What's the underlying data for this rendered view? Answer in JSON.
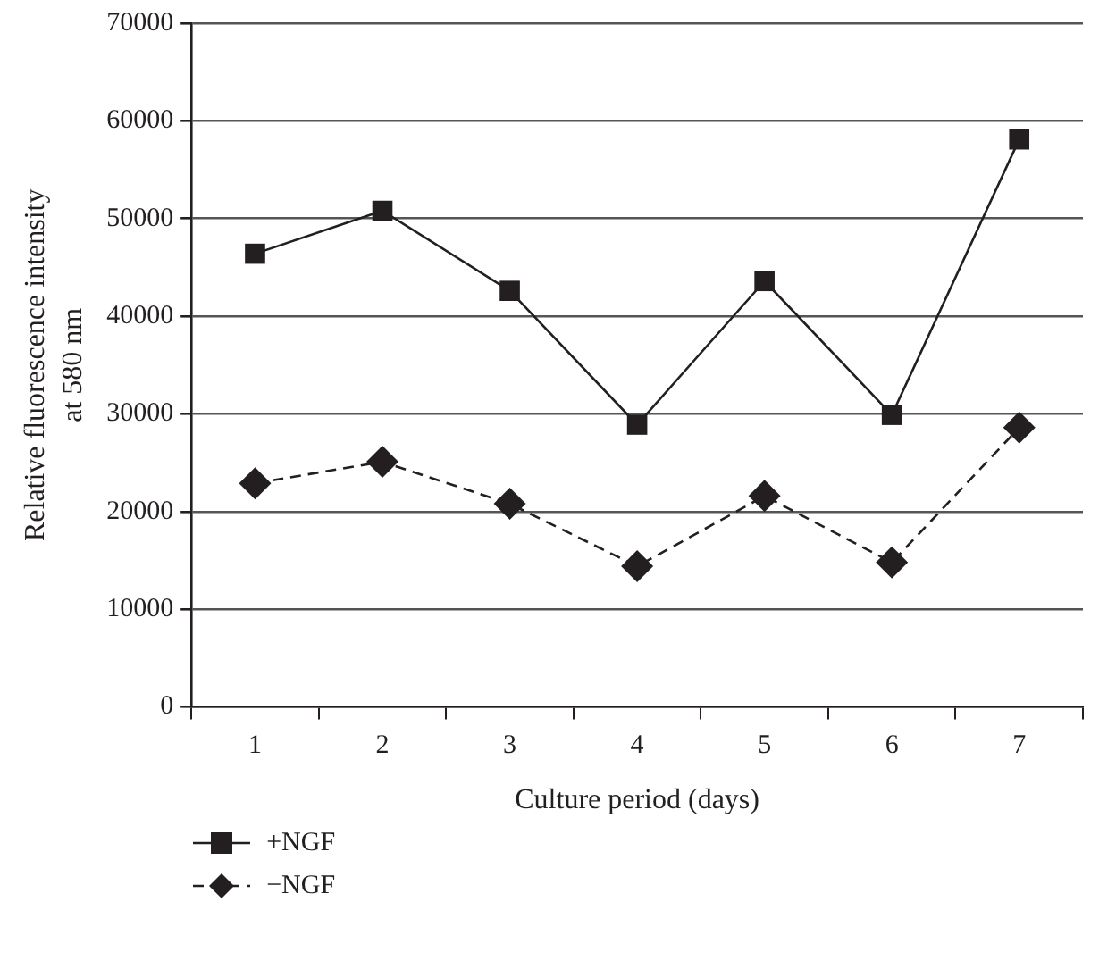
{
  "chart_data": {
    "type": "line",
    "xlabel": "Culture period (days)",
    "ylabel": "Relative fluorescence intensity\nat 580 nm",
    "categories": [
      "1",
      "2",
      "3",
      "4",
      "5",
      "6",
      "7"
    ],
    "series": [
      {
        "name": "+NGF",
        "color": "#231f20",
        "marker": "square",
        "line_style": "solid",
        "values": [
          46400,
          50800,
          42600,
          28900,
          43600,
          29900,
          58100
        ]
      },
      {
        "name": "−NGF",
        "color": "#231f20",
        "marker": "diamond",
        "line_style": "dashed",
        "values": [
          22900,
          25100,
          20800,
          14400,
          21600,
          14800,
          28600
        ]
      }
    ],
    "ylim": [
      0,
      70000
    ],
    "yticks": [
      0,
      10000,
      20000,
      30000,
      40000,
      50000,
      60000,
      70000
    ],
    "grid": "y",
    "legend": "bottom left"
  }
}
